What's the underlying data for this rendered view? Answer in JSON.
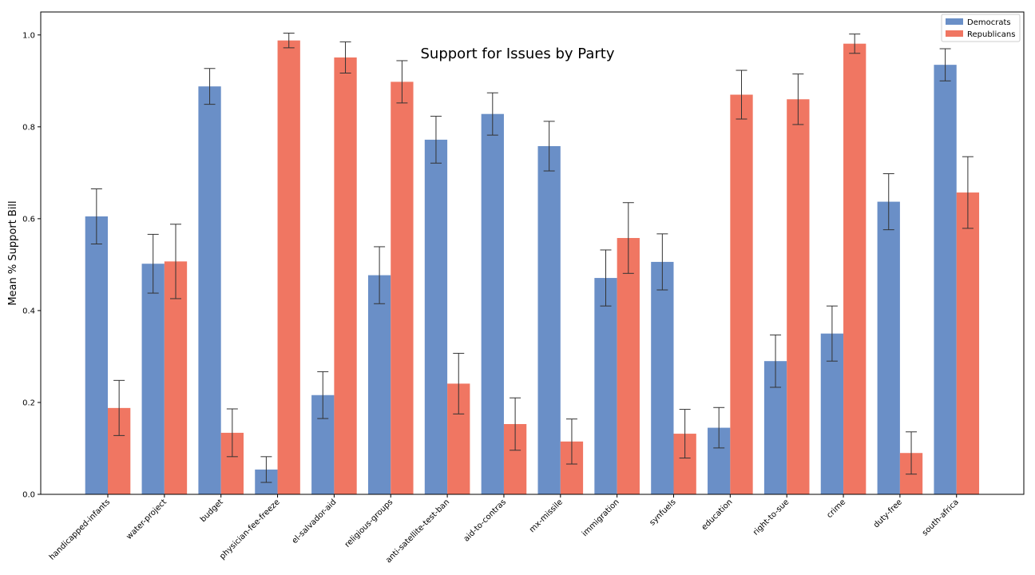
{
  "chart_data": {
    "type": "bar",
    "title": "Support for Issues by Party",
    "xlabel": "",
    "ylabel": "Mean % Support Bill",
    "ylim": [
      0,
      1.05
    ],
    "yticks": [
      "0.0",
      "0.2",
      "0.4",
      "0.6",
      "0.8",
      "1.0"
    ],
    "grid": false,
    "legend_position": "top-right",
    "categories": [
      "handicapped-infants",
      "water-project",
      "budget",
      "physician-fee-freeze",
      "el-salvador-aid",
      "religious-groups",
      "anti-satellite-test-ban",
      "aid-to-contras",
      "mx-missile",
      "immigration",
      "synfuels",
      "education",
      "right-to-sue",
      "crime",
      "duty-free",
      "south-africa"
    ],
    "series": [
      {
        "name": "Democrats",
        "color": "#6a8fc7",
        "values": [
          0.605,
          0.502,
          0.888,
          0.054,
          0.216,
          0.477,
          0.772,
          0.828,
          0.758,
          0.471,
          0.506,
          0.145,
          0.29,
          0.35,
          0.637,
          0.935
        ],
        "errors": [
          0.06,
          0.064,
          0.039,
          0.028,
          0.051,
          0.062,
          0.051,
          0.046,
          0.054,
          0.061,
          0.061,
          0.044,
          0.057,
          0.06,
          0.061,
          0.035
        ]
      },
      {
        "name": "Republicans",
        "color": "#f07662",
        "values": [
          0.188,
          0.507,
          0.134,
          0.988,
          0.951,
          0.898,
          0.241,
          0.153,
          0.115,
          0.558,
          0.132,
          0.87,
          0.86,
          0.981,
          0.09,
          0.657
        ],
        "errors": [
          0.06,
          0.081,
          0.052,
          0.016,
          0.034,
          0.046,
          0.066,
          0.057,
          0.049,
          0.077,
          0.053,
          0.053,
          0.055,
          0.021,
          0.046,
          0.078
        ]
      }
    ]
  }
}
